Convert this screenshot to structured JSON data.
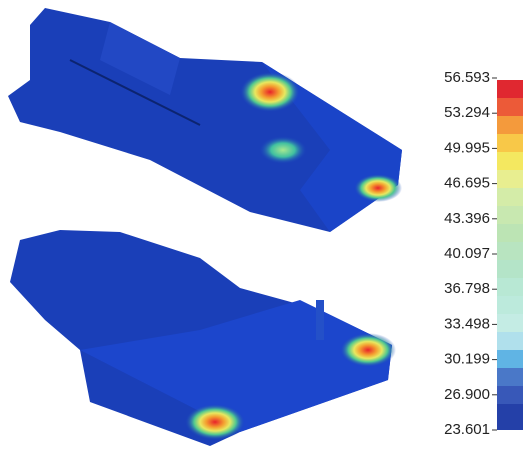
{
  "legend": {
    "labels": [
      "56.593",
      "53.294",
      "49.995",
      "46.695",
      "43.396",
      "40.097",
      "36.798",
      "33.498",
      "30.199",
      "26.900",
      "23.601"
    ]
  }
}
